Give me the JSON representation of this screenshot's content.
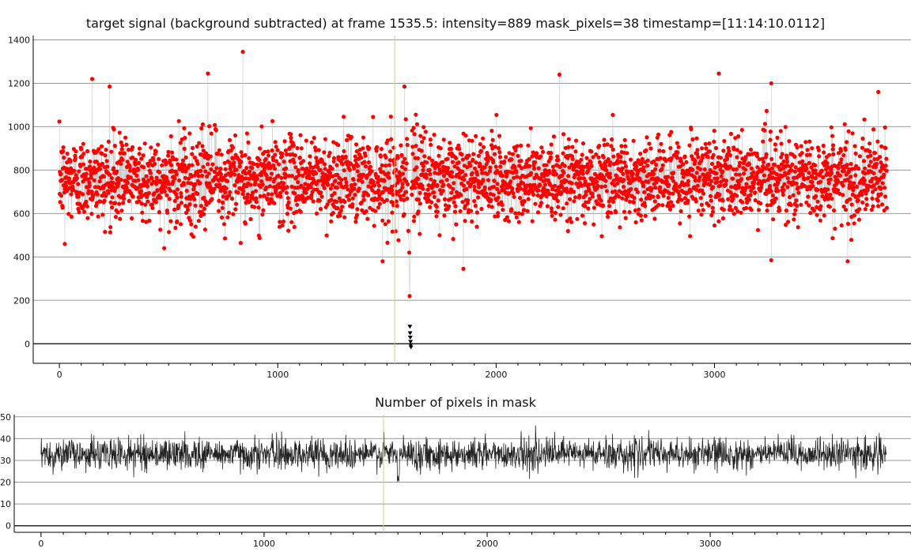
{
  "chart_data": [
    {
      "type": "scatter",
      "title": "target signal (background subtracted) at frame 1535.5: intensity=889 mask_pixels=38 timestamp=[11:14:10.0112]",
      "xlabel": "",
      "ylabel": "",
      "xlim": [
        -120,
        3900
      ],
      "ylim": [
        -90,
        1420
      ],
      "x_ticks": [
        0,
        1000,
        2000,
        3000
      ],
      "y_ticks": [
        0,
        200,
        400,
        600,
        800,
        1000,
        1200,
        1400
      ],
      "grid": true,
      "cursor_frame": 1535.5,
      "series": [
        {
          "color": "#ff0000",
          "x_range": [
            0,
            3790
          ],
          "typical_range": [
            600,
            950
          ],
          "mean": 760,
          "outliers_high": [
            [
              150,
              1220
            ],
            [
              230,
              1185
            ],
            [
              680,
              1245
            ],
            [
              840,
              1345
            ],
            [
              1580,
              1185
            ],
            [
              2290,
              1240
            ],
            [
              3020,
              1245
            ],
            [
              3260,
              1200
            ],
            [
              3750,
              1160
            ]
          ],
          "outliers_low": [
            [
              25,
              460
            ],
            [
              480,
              440
            ],
            [
              1480,
              380
            ],
            [
              1850,
              345
            ],
            [
              3260,
              385
            ],
            [
              3610,
              380
            ]
          ],
          "dip": [
            [
              1598,
              520
            ],
            [
              1602,
              420
            ],
            [
              1604,
              220
            ]
          ]
        },
        {
          "color": "#000000",
          "x": [
            1605,
            1606,
            1607,
            1608,
            1609,
            1610
          ],
          "values": [
            80,
            50,
            30,
            10,
            -5,
            -15
          ]
        }
      ],
      "connecting_line_color": "#c8c8c8",
      "cursor_color": "#c8d278"
    },
    {
      "type": "line",
      "title": "Number of pixels in mask",
      "xlabel": "",
      "ylabel": "",
      "xlim": [
        -120,
        3900
      ],
      "ylim": [
        -3,
        51
      ],
      "x_ticks": [
        0,
        1000,
        2000,
        3000
      ],
      "y_ticks": [
        0,
        10,
        20,
        30,
        40,
        50
      ],
      "grid": true,
      "cursor_frame": 1535.5,
      "series": [
        {
          "color": "#222222",
          "x_range": [
            0,
            3790
          ],
          "mean": 33,
          "typical_range": [
            25,
            41
          ],
          "dip": [
            [
              1598,
              22
            ],
            [
              1603,
              17
            ]
          ]
        }
      ]
    }
  ]
}
